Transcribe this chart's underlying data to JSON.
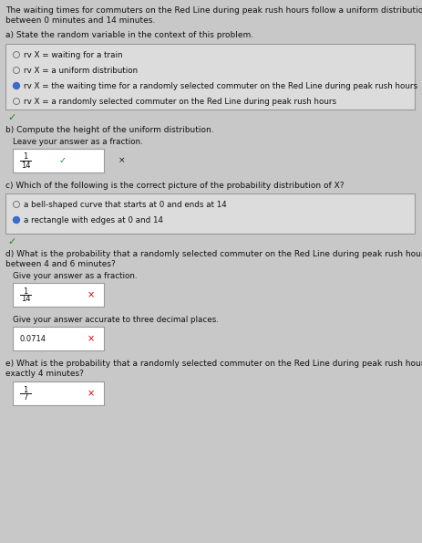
{
  "bg_color": "#c8c8c8",
  "intro_text_line1": "The waiting times for commuters on the Red Line during peak rush hours follow a uniform distribution",
  "intro_text_line2": "between 0 minutes and 14 minutes.",
  "part_a_label": "a) State the random variable in the context of this problem.",
  "part_a_options": [
    "rv X = waiting for a train",
    "rv X = a uniform distribution",
    "rv X = the waiting time for a randomly selected commuter on the Red Line during peak rush hours",
    "rv X = a randomly selected commuter on the Red Line during peak rush hours"
  ],
  "part_a_selected": 2,
  "part_b_label": "b) Compute the height of the uniform distribution.",
  "part_b_sublabel": "Leave your answer as a fraction.",
  "part_b_num": "1",
  "part_b_den": "14",
  "part_b_note": "×",
  "part_c_label": "c) Which of the following is the correct picture of the probability distribution of X?",
  "part_c_options": [
    "a bell-shaped curve that starts at 0 and ends at 14",
    "a rectangle with edges at 0 and 14"
  ],
  "part_c_selected": 1,
  "part_d_label1": "d) What is the probability that a randomly selected commuter on the Red Line during peak rush hours waits",
  "part_d_label2": "between 4 and 6 minutes?",
  "part_d_sublabel1": "Give your answer as a fraction.",
  "part_d_num1": "1",
  "part_d_den1": "14",
  "part_d_sublabel2": "Give your answer accurate to three decimal places.",
  "part_d_answer2": "0.0714",
  "part_e_label1": "e) What is the probability that a randomly selected commuter on the Red Line during peak rush hours waits",
  "part_e_label2": "exactly 4 minutes?",
  "part_e_num": "1",
  "part_e_den": "7",
  "radio_sel": "#3a6cc8",
  "radio_unsel": "#777777",
  "box_border": "#999999",
  "correct_color": "#228B22",
  "wrong_color": "#cc0000",
  "text_color": "#111111",
  "white": "#ffffff"
}
